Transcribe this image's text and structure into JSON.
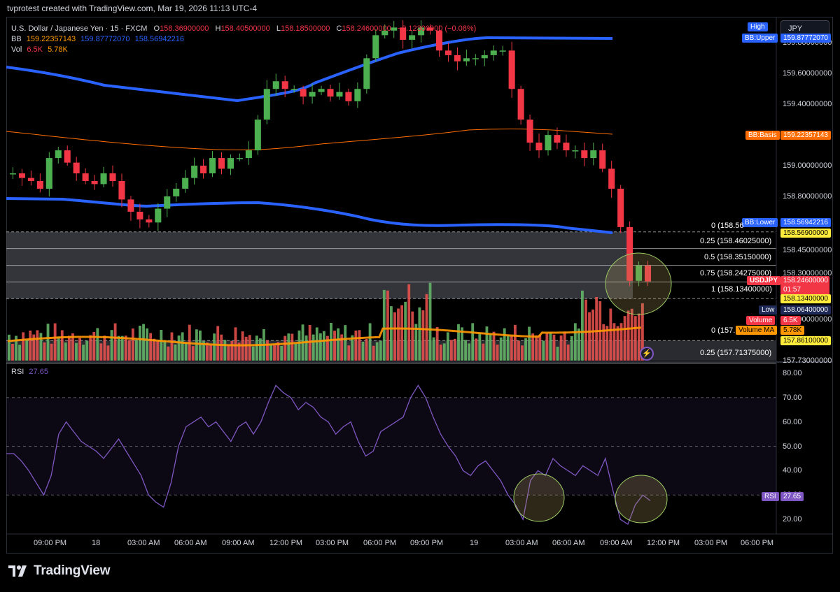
{
  "snapshot_header": "tvprotest created with TradingView.com, Mar 19, 2026 11:13 UTC-4",
  "symbol_line": {
    "title": "U.S. Dollar / Japanese Yen · 15 · FXCM",
    "o_label": "O",
    "o": "158.36900000",
    "h_label": "H",
    "h": "158.40500000",
    "l_label": "L",
    "l": "158.18500000",
    "c_label": "C",
    "c": "158.24600000",
    "change": "−0.12300000 (−0.08%)"
  },
  "bb_legend": {
    "label": "BB",
    "basis": "159.22357143",
    "upper": "159.87772070",
    "lower": "158.56942216"
  },
  "vol_legend": {
    "label": "Vol",
    "v1": "6.5K",
    "v2": "5.78K"
  },
  "rsi_legend": {
    "label": "RSI",
    "value": "27.65"
  },
  "currency": "JPY",
  "price_axis": [
    "159.80000000",
    "159.60000000",
    "159.40000000",
    "159.00000000",
    "158.80000000",
    "158.45000000",
    "158.30000000",
    "158.00000000",
    "157.73000000"
  ],
  "price_tags": {
    "high_label": "High",
    "bb_upper_label": "BB:Upper",
    "bb_upper": "159.87772070",
    "bb_basis_label": "BB:Basis",
    "bb_basis": "159.22357143",
    "bb_lower_label": "BB:Lower",
    "bb_lower": "158.56942216",
    "fib0_top": "158.56900000",
    "symbol": "USDJPY",
    "last": "158.24600000",
    "countdown": "01:57",
    "fib1": "158.13400000",
    "low_label": "Low",
    "low": "158.06400000",
    "volume_label": "Volume",
    "volume": "6.5K",
    "volume_ma_label": "Volume MA",
    "volume_ma": "5.78K",
    "fib0_bottom": "157.86100000"
  },
  "fib_labels": {
    "f0_top": "0 (158.56",
    "f025": "0.25 (158.46025000)",
    "f05": "0.5 (158.35150000)",
    "f075": "0.75 (158.24275000)",
    "f1": "1 (158.13400000)",
    "f0_bottom": "0 (157.",
    "f025_bottom": "0.25 (157.71375000)"
  },
  "rsi_axis": [
    "80.00",
    "70.00",
    "60.00",
    "50.00",
    "40.00",
    "30.00",
    "20.00"
  ],
  "rsi_tag": {
    "label": "RSI",
    "value": "27.65"
  },
  "time_axis": [
    "09:00 PM",
    "18",
    "03:00 AM",
    "06:00 AM",
    "09:00 AM",
    "12:00 PM",
    "03:00 PM",
    "06:00 PM",
    "09:00 PM",
    "19",
    "03:00 AM",
    "06:00 AM",
    "09:00 AM",
    "12:00 PM",
    "03:00 PM",
    "06:00 PM"
  ],
  "brand": "TradingView",
  "colors": {
    "up": "#26a69a",
    "down": "#ef5350",
    "candle_up": "#4caf50",
    "candle_down": "#f23645",
    "bb_band": "#2962ff",
    "bb_basis": "#ff6d00",
    "rsi": "#7e57c2",
    "volume_ma": "#ff9800"
  },
  "chart_data": [
    {
      "type": "candlestick",
      "title": "U.S. Dollar / Japanese Yen · 15 · FXCM",
      "interval": "15",
      "ohlc_last": {
        "open": 158.369,
        "high": 158.405,
        "low": 158.185,
        "close": 158.246
      },
      "close_series": [
        158.95,
        158.92,
        158.9,
        158.85,
        159.05,
        159.1,
        159.02,
        158.95,
        158.9,
        158.88,
        158.95,
        158.9,
        158.78,
        158.7,
        158.65,
        158.63,
        158.72,
        158.8,
        158.85,
        158.92,
        159.0,
        158.95,
        159.05,
        158.98,
        159.05,
        159.05,
        159.1,
        159.3,
        159.5,
        159.55,
        159.5,
        159.5,
        159.45,
        159.48,
        159.5,
        159.45,
        159.48,
        159.42,
        159.5,
        159.7,
        159.85,
        159.88,
        159.9,
        159.82,
        159.85,
        159.9,
        159.88,
        159.75,
        159.72,
        159.68,
        159.7,
        159.7,
        159.72,
        159.75,
        159.75,
        159.5,
        159.3,
        159.15,
        159.1,
        159.2,
        159.15,
        159.1,
        159.1,
        159.05,
        159.1,
        158.98,
        158.85,
        158.6,
        158.25,
        158.35,
        158.246
      ],
      "price_range": [
        157.73,
        159.97
      ],
      "bollinger_bands": {
        "basis": 159.22357143,
        "upper": 159.8777207,
        "lower": 158.56942216
      },
      "fibonacci_levels": [
        {
          "level": 0,
          "price": 158.569
        },
        {
          "level": 0.25,
          "price": 158.46025
        },
        {
          "level": 0.5,
          "price": 158.3515
        },
        {
          "level": 0.75,
          "price": 158.24275
        },
        {
          "level": 1,
          "price": 158.134
        },
        {
          "level": 0,
          "price": 157.861
        },
        {
          "level": 0.25,
          "price": 157.71375
        }
      ],
      "high_tag": 159.8777207,
      "low_tag": 158.064
    },
    {
      "type": "bar",
      "title": "Volume",
      "last": "6.5K",
      "ma": "5.78K"
    },
    {
      "type": "line",
      "title": "RSI",
      "last": 27.65,
      "ylim": [
        14,
        84
      ],
      "bands": [
        30,
        70
      ],
      "values": [
        47,
        47,
        44,
        40,
        35,
        30,
        38,
        55,
        60,
        56,
        52,
        50,
        48,
        45,
        49,
        53,
        48,
        43,
        38,
        30,
        27,
        25,
        35,
        50,
        58,
        60,
        62,
        58,
        60,
        56,
        52,
        58,
        60,
        55,
        60,
        68,
        75,
        72,
        70,
        65,
        68,
        66,
        62,
        60,
        55,
        58,
        60,
        52,
        46,
        48,
        56,
        58,
        60,
        62,
        70,
        75,
        70,
        62,
        55,
        50,
        46,
        40,
        38,
        42,
        44,
        40,
        36,
        30,
        26,
        20,
        36,
        40,
        38,
        45,
        42,
        40,
        38,
        42,
        40,
        38,
        45,
        32,
        20,
        18,
        26,
        30,
        27.65
      ],
      "time_labels": [
        "09:00 PM",
        "18",
        "03:00 AM",
        "06:00 AM",
        "09:00 AM",
        "12:00 PM",
        "03:00 PM",
        "06:00 PM",
        "09:00 PM",
        "19",
        "03:00 AM",
        "06:00 AM",
        "09:00 AM",
        "12:00 PM",
        "03:00 PM",
        "06:00 PM"
      ]
    }
  ]
}
